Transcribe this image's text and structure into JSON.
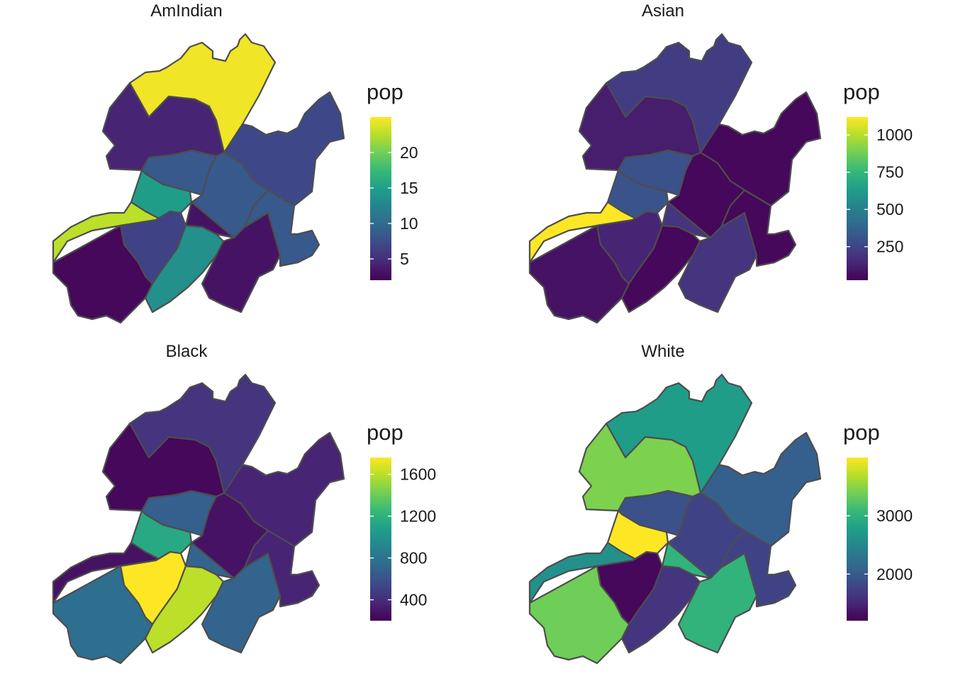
{
  "colors": {
    "viridis": [
      "#440154",
      "#482878",
      "#3e4989",
      "#31688e",
      "#26828e",
      "#1f9e89",
      "#35b779",
      "#6ece58",
      "#b5de2b",
      "#fde725"
    ],
    "border": "#4d4d4d"
  },
  "chart_data": [
    {
      "type": "choropleth",
      "title": "AmIndian",
      "legend_title": "pop",
      "legend_range": [
        2,
        25
      ],
      "ticks": [
        5,
        10,
        15,
        20
      ],
      "region_fill_levels": [
        0.98,
        0.1,
        0.28,
        0.55,
        0.22,
        0.28,
        0.9,
        0.2,
        0.5,
        0.05,
        0.02,
        0.28
      ]
    },
    {
      "type": "choropleth",
      "title": "Asian",
      "legend_title": "pop",
      "legend_range": [
        25,
        1120
      ],
      "ticks": [
        250,
        500,
        750,
        1000
      ],
      "region_fill_levels": [
        0.18,
        0.08,
        0.25,
        0.26,
        0.02,
        0.02,
        1.0,
        0.1,
        0.02,
        0.15,
        0.05,
        0.02
      ]
    },
    {
      "type": "choropleth",
      "title": "Black",
      "legend_title": "pop",
      "legend_range": [
        200,
        1760
      ],
      "ticks": [
        400,
        800,
        1200,
        1600
      ],
      "region_fill_levels": [
        0.15,
        0.02,
        0.3,
        0.6,
        0.1,
        0.05,
        0.05,
        1.0,
        0.9,
        0.32,
        0.36,
        0.1
      ]
    },
    {
      "type": "choropleth",
      "title": "White",
      "legend_title": "pop",
      "legend_range": [
        1200,
        4000
      ],
      "ticks": [
        2000,
        3000
      ],
      "region_fill_levels": [
        0.55,
        0.8,
        0.25,
        1.0,
        0.3,
        0.2,
        0.5,
        0.02,
        0.15,
        0.65,
        0.78,
        0.2
      ]
    }
  ]
}
